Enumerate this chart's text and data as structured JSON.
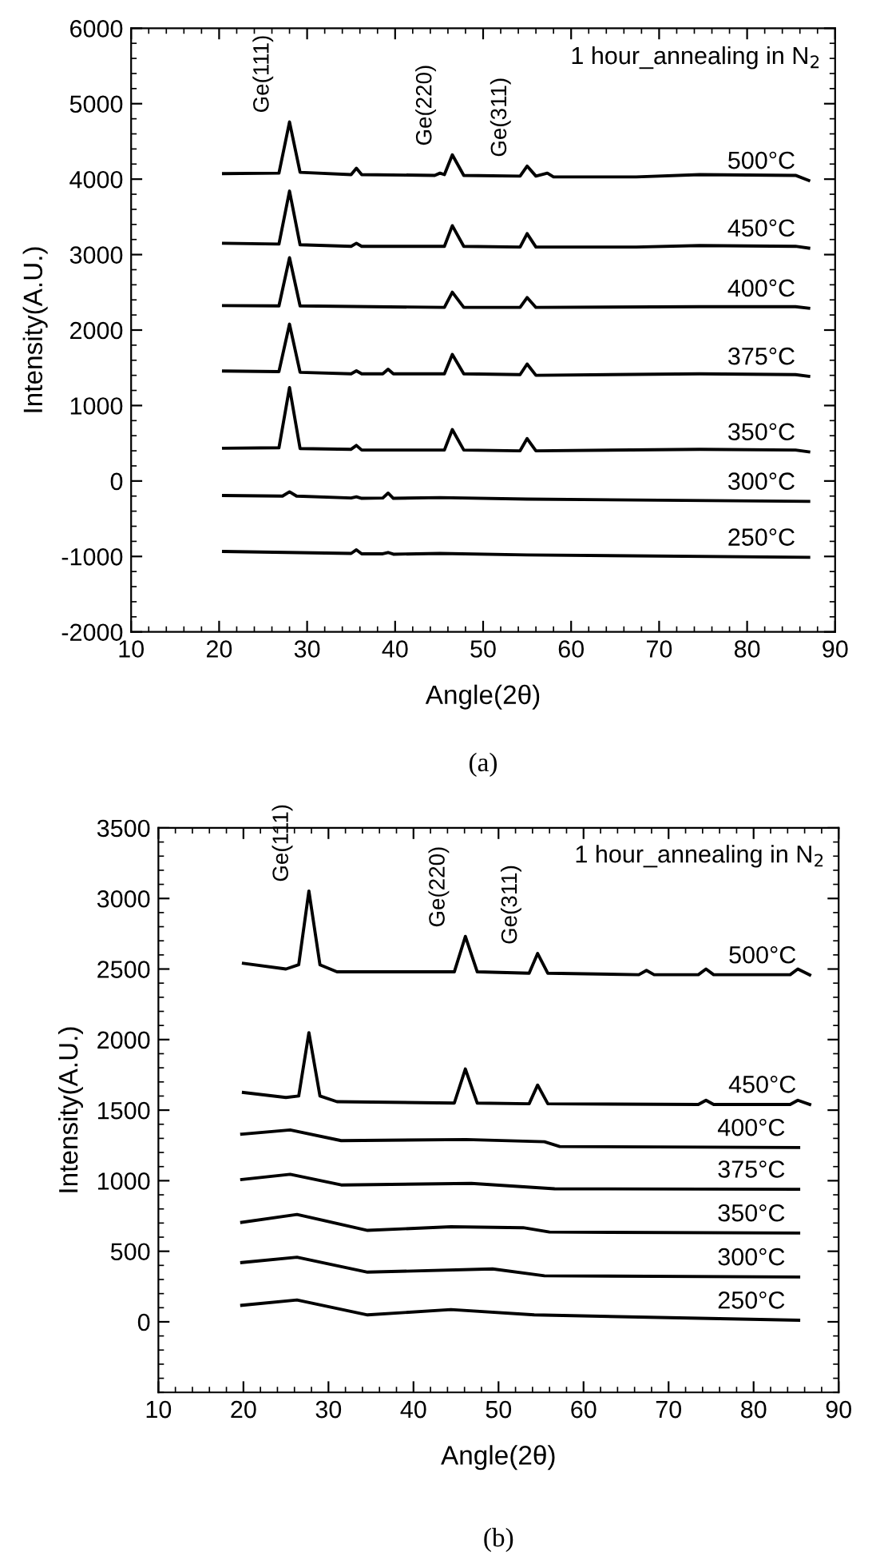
{
  "chart_data": [
    {
      "type": "line",
      "xlabel": "Angle(2θ)",
      "ylabel": "Intensity(A.U.)",
      "xlim": [
        10,
        90
      ],
      "xticks": [
        10,
        20,
        30,
        40,
        50,
        60,
        70,
        80,
        90
      ],
      "ylim": [
        -2000,
        6000
      ],
      "yticks": [
        -2000,
        -1000,
        0,
        1000,
        2000,
        3000,
        4000,
        5000,
        6000
      ],
      "grid": false,
      "legend": "right",
      "marker": "none",
      "line_style": "solid",
      "annotations": [
        "1 hour_annealing in N$_{2}$",
        "(a)",
        {
          "text": "Ge(111)",
          "x": 28,
          "y": 4758
        },
        {
          "text": "Ge(220)",
          "x": 46.5,
          "y": 4322
        },
        {
          "text": "Ge(311)",
          "x": 55,
          "y": 4173
        }
      ],
      "series": [
        {
          "name": "500°C",
          "color": "#000000",
          "x": [
            20.5,
            26.8,
            28,
            29.2,
            35,
            35.6,
            36.2,
            44.5,
            45.1,
            45.6,
            46.5,
            47.8,
            54.2,
            55,
            56,
            57.3,
            58,
            67.4,
            74.6,
            85.5,
            87
          ],
          "values": [
            4074,
            4080,
            4758,
            4090,
            4060,
            4145,
            4060,
            4050,
            4080,
            4060,
            4322,
            4050,
            4040,
            4173,
            4040,
            4080,
            4030,
            4030,
            4060,
            4050,
            3983
          ]
        },
        {
          "name": "450°C",
          "color": "#000000",
          "x": [
            20.5,
            26.8,
            28,
            29.2,
            35,
            35.6,
            36.2,
            45.6,
            46.5,
            47.8,
            54.2,
            55,
            56,
            67.4,
            74.6,
            85.5,
            87
          ],
          "values": [
            3150,
            3140,
            3842,
            3130,
            3110,
            3150,
            3110,
            3110,
            3383,
            3110,
            3100,
            3278,
            3100,
            3100,
            3120,
            3110,
            3086
          ]
        },
        {
          "name": "400°C",
          "color": "#000000",
          "x": [
            20.5,
            26.8,
            28,
            29.2,
            45.6,
            46.5,
            47.8,
            54.2,
            55,
            56,
            74.6,
            85.5,
            87
          ],
          "values": [
            2324,
            2320,
            2960,
            2320,
            2300,
            2502,
            2300,
            2300,
            2431,
            2300,
            2310,
            2310,
            2290
          ]
        },
        {
          "name": "375°C",
          "color": "#000000",
          "x": [
            20.5,
            26.8,
            28,
            29.2,
            35,
            35.6,
            36.2,
            38.6,
            39.2,
            39.8,
            45.6,
            46.5,
            47.8,
            54.2,
            55,
            56,
            74.6,
            85.5,
            87
          ],
          "values": [
            1457,
            1450,
            2079,
            1440,
            1420,
            1460,
            1420,
            1420,
            1480,
            1420,
            1420,
            1677,
            1420,
            1410,
            1550,
            1400,
            1420,
            1410,
            1387
          ]
        },
        {
          "name": "350°C",
          "color": "#000000",
          "x": [
            20.5,
            26.8,
            28,
            29.2,
            35,
            35.6,
            36.2,
            45.6,
            46.5,
            47.8,
            54.2,
            55,
            56,
            74.6,
            85.5,
            87
          ],
          "values": [
            434,
            440,
            1238,
            430,
            420,
            471,
            410,
            410,
            682,
            410,
            400,
            562,
            400,
            420,
            410,
            386
          ]
        },
        {
          "name": "300°C",
          "color": "#000000",
          "x": [
            20.5,
            27.2,
            28,
            28.8,
            35,
            35.6,
            36.2,
            38.6,
            39.2,
            39.8,
            45.1,
            55,
            87
          ],
          "values": [
            -193,
            -200,
            -143,
            -200,
            -225,
            -210,
            -230,
            -225,
            -160,
            -230,
            -220,
            -240,
            -270
          ]
        },
        {
          "name": "250°C",
          "color": "#000000",
          "x": [
            20.5,
            35,
            35.6,
            36.2,
            38.6,
            39.2,
            39.8,
            45.1,
            55,
            87
          ],
          "values": [
            -934,
            -960,
            -912,
            -965,
            -965,
            -947,
            -970,
            -960,
            -980,
            -1011
          ]
        }
      ]
    },
    {
      "type": "line",
      "xlabel": "Angle(2θ)",
      "ylabel": "Intensity(A.U.)",
      "xlim": [
        10,
        90
      ],
      "xticks": [
        10,
        20,
        30,
        40,
        50,
        60,
        70,
        80,
        90
      ],
      "ylim": [
        -500,
        3500
      ],
      "yticks": [
        0,
        500,
        1000,
        1500,
        2000,
        2500,
        3000,
        3500
      ],
      "grid": false,
      "legend": "right",
      "marker": "none",
      "line_style": "solid",
      "annotations": [
        "1 hour_annealing in N$_{2}$",
        "(b)",
        {
          "text": "Ge(111)",
          "x": 27.7,
          "y": 3053
        },
        {
          "text": "Ge(220)",
          "x": 46.1,
          "y": 2731
        },
        {
          "text": "Ge(311)",
          "x": 54.6,
          "y": 2610
        }
      ],
      "series": [
        {
          "name": "500°C",
          "color": "#000000",
          "x": [
            20,
            25,
            26.5,
            27.7,
            29,
            31,
            44.8,
            46.1,
            47.5,
            53.6,
            54.6,
            55.8,
            66.5,
            67.4,
            68.3,
            73.5,
            74.4,
            75.3,
            84.3,
            85.2,
            86.6
          ],
          "values": [
            2540,
            2500,
            2530,
            3053,
            2530,
            2480,
            2480,
            2731,
            2480,
            2470,
            2610,
            2470,
            2460,
            2490,
            2460,
            2460,
            2500,
            2460,
            2460,
            2500,
            2458
          ]
        },
        {
          "name": "450°C",
          "color": "#000000",
          "x": [
            20,
            25,
            26.5,
            27.7,
            29,
            31,
            44.8,
            46.1,
            47.5,
            53.6,
            54.6,
            55.8,
            73.5,
            74.4,
            75.3,
            84.3,
            85.2,
            86.6
          ],
          "values": [
            1625,
            1590,
            1600,
            2049,
            1600,
            1560,
            1550,
            1792,
            1550,
            1545,
            1678,
            1545,
            1540,
            1570,
            1540,
            1540,
            1570,
            1540
          ]
        },
        {
          "name": "400°C",
          "color": "#000000",
          "x": [
            19.8,
            25.5,
            31.5,
            46.2,
            55.4,
            57.2,
            85.3
          ],
          "values": [
            1330,
            1360,
            1284,
            1292,
            1276,
            1242,
            1235
          ]
        },
        {
          "name": "375°C",
          "color": "#000000",
          "x": [
            19.8,
            25.5,
            31.5,
            46.8,
            56.6,
            85.3
          ],
          "values": [
            1008,
            1045,
            970,
            981,
            943,
            939
          ]
        },
        {
          "name": "350°C",
          "color": "#000000",
          "x": [
            19.8,
            26.3,
            34.6,
            44.4,
            52.9,
            56,
            85.3
          ],
          "values": [
            705,
            761,
            648,
            674,
            667,
            636,
            629
          ]
        },
        {
          "name": "300°C",
          "color": "#000000",
          "x": [
            19.8,
            26.3,
            34.6,
            49.3,
            55.4,
            85.3
          ],
          "values": [
            420,
            458,
            352,
            375,
            326,
            318
          ]
        },
        {
          "name": "250°C",
          "color": "#000000",
          "x": [
            19.8,
            26.3,
            34.6,
            44.4,
            54.2,
            85.3
          ],
          "values": [
            117,
            155,
            49,
            87,
            49,
            11
          ]
        }
      ]
    }
  ]
}
